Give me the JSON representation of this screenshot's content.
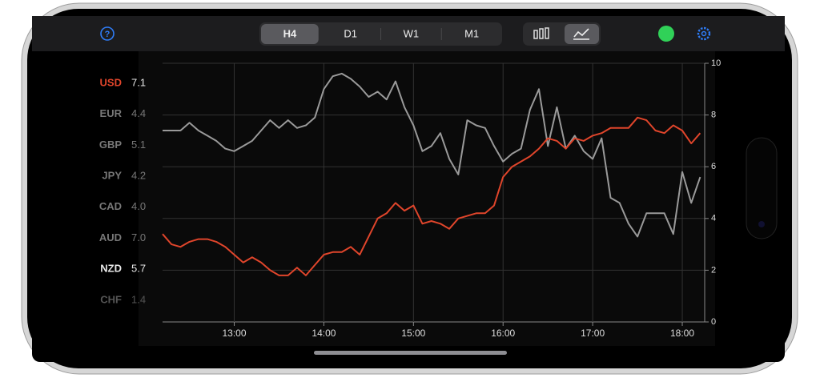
{
  "toolbar": {
    "tabs": [
      "H4",
      "D1",
      "W1",
      "M1"
    ]
  },
  "sidebar": [
    {
      "code": "USD",
      "value": "7.1"
    },
    {
      "code": "EUR",
      "value": "4.4"
    },
    {
      "code": "GBP",
      "value": "5.1"
    },
    {
      "code": "JPY",
      "value": "4.2"
    },
    {
      "code": "CAD",
      "value": "4.0"
    },
    {
      "code": "AUD",
      "value": "7.0"
    },
    {
      "code": "NZD",
      "value": "5.7"
    },
    {
      "code": "CHF",
      "value": "1.4"
    }
  ],
  "chart_data": {
    "type": "line",
    "x": [
      12.2,
      12.3,
      12.4,
      12.5,
      12.6,
      12.7,
      12.8,
      12.9,
      13.0,
      13.1,
      13.2,
      13.3,
      13.4,
      13.5,
      13.6,
      13.7,
      13.8,
      13.9,
      14.0,
      14.1,
      14.2,
      14.3,
      14.4,
      14.5,
      14.6,
      14.7,
      14.8,
      14.9,
      15.0,
      15.1,
      15.2,
      15.3,
      15.4,
      15.5,
      15.6,
      15.7,
      15.8,
      15.9,
      16.0,
      16.1,
      16.2,
      16.3,
      16.4,
      16.5,
      16.6,
      16.7,
      16.8,
      16.9,
      17.0,
      17.1,
      17.2,
      17.3,
      17.4,
      17.5,
      17.6,
      17.7,
      17.8,
      17.9,
      18.0,
      18.1,
      18.2
    ],
    "series": [
      {
        "color": "#9a9a9a",
        "values": [
          7.4,
          7.4,
          7.4,
          7.7,
          7.4,
          7.2,
          7.0,
          6.7,
          6.6,
          6.8,
          7.0,
          7.4,
          7.8,
          7.5,
          7.8,
          7.5,
          7.6,
          7.9,
          9.0,
          9.5,
          9.6,
          9.4,
          9.1,
          8.7,
          8.9,
          8.6,
          9.3,
          8.3,
          7.6,
          6.6,
          6.8,
          7.3,
          6.3,
          5.7,
          7.8,
          7.6,
          7.5,
          6.8,
          6.2,
          6.5,
          6.7,
          8.2,
          9.0,
          6.8,
          8.3,
          6.7,
          7.2,
          6.6,
          6.3,
          7.1,
          4.8,
          4.6,
          3.8,
          3.3,
          4.2,
          4.2,
          4.2,
          3.4,
          5.8,
          4.6,
          5.6
        ]
      },
      {
        "color": "#e0452b",
        "values": [
          3.4,
          3.0,
          2.9,
          3.1,
          3.2,
          3.2,
          3.1,
          2.9,
          2.6,
          2.3,
          2.5,
          2.3,
          2.0,
          1.8,
          1.8,
          2.1,
          1.8,
          2.2,
          2.6,
          2.7,
          2.7,
          2.9,
          2.6,
          3.3,
          4.0,
          4.2,
          4.6,
          4.3,
          4.5,
          3.8,
          3.9,
          3.8,
          3.6,
          4.0,
          4.1,
          4.2,
          4.2,
          4.5,
          5.6,
          6.0,
          6.2,
          6.4,
          6.7,
          7.1,
          7.0,
          6.7,
          7.1,
          7.0,
          7.2,
          7.3,
          7.5,
          7.5,
          7.5,
          7.9,
          7.8,
          7.4,
          7.3,
          7.6,
          7.4,
          6.9,
          7.3
        ]
      }
    ],
    "xlim": [
      12.2,
      18.25
    ],
    "xticks": [
      {
        "value": 13,
        "label": "13:00"
      },
      {
        "value": 14,
        "label": "14:00"
      },
      {
        "value": 15,
        "label": "15:00"
      },
      {
        "value": 16,
        "label": "16:00"
      },
      {
        "value": 17,
        "label": "17:00"
      },
      {
        "value": 18,
        "label": "18:00"
      }
    ],
    "ylim": [
      0,
      10
    ],
    "yticks": [
      0,
      2,
      4,
      6,
      8,
      10
    ],
    "grid": true
  }
}
